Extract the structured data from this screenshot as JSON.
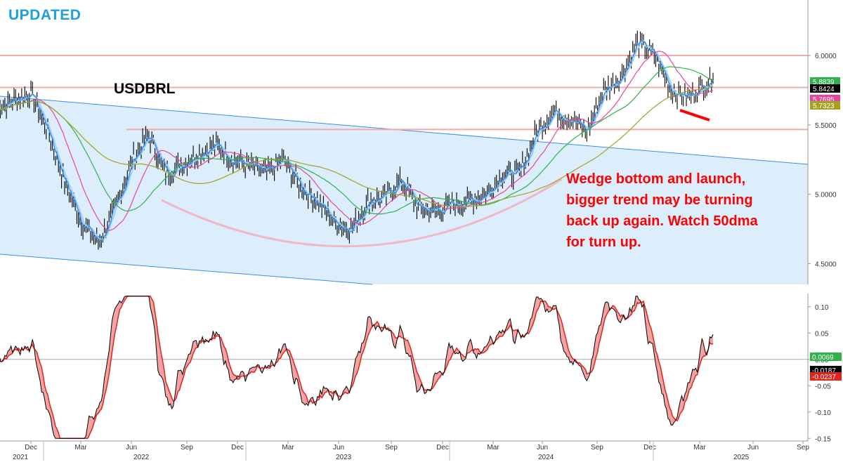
{
  "header": {
    "title": "UPDATED",
    "title_color": "#1ea0dc"
  },
  "pair_label": "USDBRL",
  "annotation": {
    "lines": [
      "Wedge bottom and launch,",
      "bigger trend may be turning",
      "back up again. Watch 50dma",
      "for turn up."
    ],
    "color": "#ff0000"
  },
  "colors": {
    "price": "#000000",
    "ma_fast": "#3c8ee6",
    "ma_short": "#9ecff5",
    "ma50": "#e8459a",
    "ma100": "#2db34a",
    "ma200": "#a6a020",
    "channel_fill": "#dceefc",
    "channel_line": "#3c8ee6",
    "levels": "#f2a9a9",
    "osc_fast": "#000000",
    "osc_slow": "#e0231c",
    "osc_fill": "#f2a3a3"
  },
  "chart_data": [
    {
      "type": "line",
      "name_label": "USDBRL",
      "y_ticks": [
        "6.0000",
        "5.5000",
        "5.0000",
        "4.5000"
      ],
      "ylim": [
        4.35,
        6.4
      ],
      "x_months": [
        "Dec",
        "Mar",
        "Jun",
        "Sep",
        "Dec",
        "Mar",
        "Jun",
        "Sep",
        "Dec",
        "Mar",
        "Jun",
        "Sep",
        "Dec",
        "Mar",
        "Jun",
        "Sep"
      ],
      "x_years": [
        "2021",
        "2022",
        "2023",
        "2024",
        "2025"
      ],
      "price_points": [
        [
          "2021-10",
          5.62
        ],
        [
          "2021-11",
          5.68
        ],
        [
          "2021-12",
          5.73
        ],
        [
          "2022-01",
          5.45
        ],
        [
          "2022-02",
          5.08
        ],
        [
          "2022-03",
          4.8
        ],
        [
          "2022-04",
          4.65
        ],
        [
          "2022-05",
          4.9
        ],
        [
          "2022-06",
          5.25
        ],
        [
          "2022-07",
          5.42
        ],
        [
          "2022-08",
          5.15
        ],
        [
          "2022-09",
          5.22
        ],
        [
          "2022-10",
          5.3
        ],
        [
          "2022-11",
          5.35
        ],
        [
          "2022-12",
          5.25
        ],
        [
          "2023-01",
          5.2
        ],
        [
          "2023-02",
          5.15
        ],
        [
          "2023-03",
          5.25
        ],
        [
          "2023-04",
          5.05
        ],
        [
          "2023-05",
          4.95
        ],
        [
          "2023-06",
          4.8
        ],
        [
          "2023-07",
          4.75
        ],
        [
          "2023-08",
          4.95
        ],
        [
          "2023-09",
          4.98
        ],
        [
          "2023-10",
          5.1
        ],
        [
          "2023-11",
          4.9
        ],
        [
          "2023-12",
          4.88
        ],
        [
          "2024-01",
          4.92
        ],
        [
          "2024-02",
          4.95
        ],
        [
          "2024-03",
          5.0
        ],
        [
          "2024-04",
          5.15
        ],
        [
          "2024-05",
          5.15
        ],
        [
          "2024-06",
          5.45
        ],
        [
          "2024-07",
          5.6
        ],
        [
          "2024-08",
          5.55
        ],
        [
          "2024-09",
          5.45
        ],
        [
          "2024-10",
          5.75
        ],
        [
          "2024-11",
          5.85
        ],
        [
          "2024-12",
          6.1
        ],
        [
          "2025-01",
          6.0
        ],
        [
          "2025-02",
          5.75
        ],
        [
          "2025-03",
          5.7
        ],
        [
          "2025-03",
          5.84
        ]
      ],
      "levels": [
        6.0,
        5.7695,
        5.4667
      ],
      "value_tags": [
        {
          "label": "5.8839",
          "color": "#2db34a"
        },
        {
          "label": "5.8424",
          "color": "#000000"
        },
        {
          "label": "5.7695",
          "color": "#e8459a"
        },
        {
          "label": "5.7323",
          "color": "#a6a020"
        }
      ]
    },
    {
      "type": "line",
      "y_ticks": [
        "0.10",
        "0.05",
        "0.00",
        "-0.05",
        "-0.10",
        "-0.15"
      ],
      "ylim": [
        -0.155,
        0.125
      ],
      "value_tags": [
        {
          "label": "0.0069",
          "color": "#2db34a"
        },
        {
          "label": "-0.0187",
          "color": "#000000"
        },
        {
          "label": "-0.0237",
          "color": "#e0231c"
        }
      ]
    }
  ]
}
